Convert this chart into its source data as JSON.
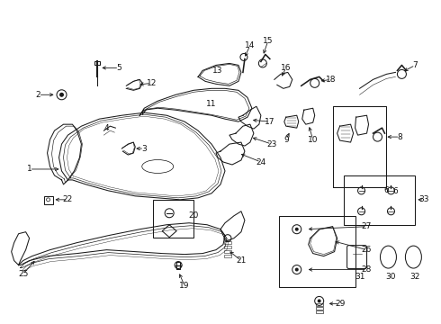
{
  "bg_color": "#ffffff",
  "fig_width": 4.9,
  "fig_height": 3.6,
  "dpi": 100,
  "line_color": "#1a1a1a",
  "label_color": "#111111",
  "font_size": 6.5,
  "lw": 0.75
}
